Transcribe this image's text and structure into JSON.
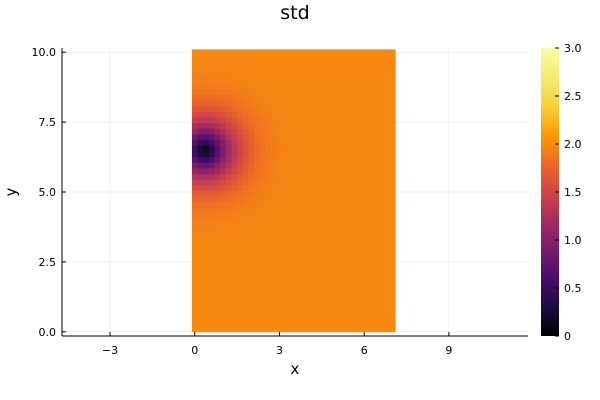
{
  "chart_data": {
    "type": "heatmap",
    "title": "std",
    "xlabel": "x",
    "ylabel": "y",
    "xlim": [
      -4.7,
      11.8
    ],
    "ylim": [
      -0.15,
      10.15
    ],
    "x_ticks": [
      -3,
      0,
      3,
      6,
      9
    ],
    "x_tick_labels": [
      "−3",
      "0",
      "3",
      "6",
      "9"
    ],
    "y_ticks": [
      0.0,
      2.5,
      5.0,
      7.5,
      10.0
    ],
    "y_tick_labels": [
      "0.0",
      "2.5",
      "5.0",
      "7.5",
      "10.0"
    ],
    "grid": true,
    "colormap": "inferno",
    "colorbar": {
      "clim": [
        0,
        3
      ],
      "ticks": [
        0,
        0.5,
        1.0,
        1.5,
        2.0,
        2.5,
        3.0
      ],
      "tick_labels": [
        "0",
        "0.5",
        "1.0",
        "1.5",
        "2.0",
        "2.5",
        "3.0"
      ]
    },
    "field": {
      "x_range": [
        -0.1,
        7.1
      ],
      "y_range": [
        0.0,
        10.1
      ],
      "nx": 36,
      "ny": 50,
      "min_point": {
        "x": 0.35,
        "y": 6.5,
        "value": 0.1
      },
      "plateau_value": 2.0,
      "description": "std is near zero at the observation point and rises to about 2.0 away from it"
    }
  }
}
